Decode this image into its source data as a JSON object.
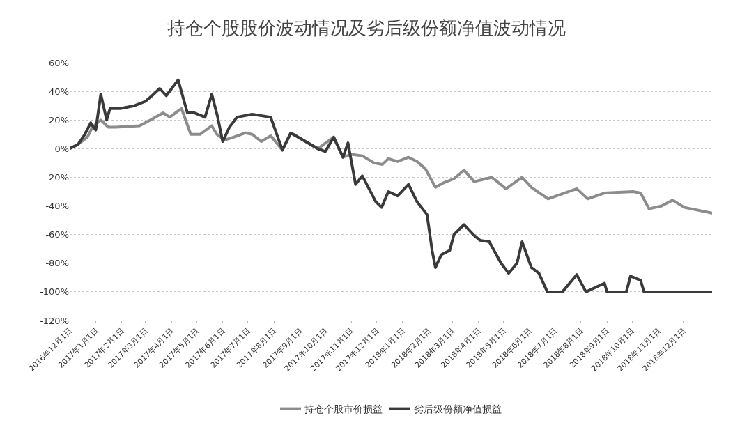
{
  "chart_data": {
    "type": "line",
    "title": "持仓个股股价波动情况及劣后级份额净值波动情况",
    "xlim": [
      "2016-12-01",
      "2019-01-04"
    ],
    "xticks": [
      {
        "value": "2016-12-01",
        "label": "2016年12月1日"
      },
      {
        "value": "2017-01-01",
        "label": "2017年1月1日"
      },
      {
        "value": "2017-02-01",
        "label": "2017年2月1日"
      },
      {
        "value": "2017-03-01",
        "label": "2017年3月1日"
      },
      {
        "value": "2017-04-01",
        "label": "2017年4月1日"
      },
      {
        "value": "2017-05-01",
        "label": "2017年5月1日"
      },
      {
        "value": "2017-06-01",
        "label": "2017年6月1日"
      },
      {
        "value": "2017-07-01",
        "label": "2017年7月1日"
      },
      {
        "value": "2017-08-01",
        "label": "2017年8月1日"
      },
      {
        "value": "2017-09-01",
        "label": "2017年9月1日"
      },
      {
        "value": "2017-10-01",
        "label": "2017年10月1日"
      },
      {
        "value": "2017-11-01",
        "label": "2017年11月1日"
      },
      {
        "value": "2017-12-01",
        "label": "2017年12月1日"
      },
      {
        "value": "2018-01-01",
        "label": "2018年1月1日"
      },
      {
        "value": "2018-02-01",
        "label": "2018年2月1日"
      },
      {
        "value": "2018-03-01",
        "label": "2018年3月1日"
      },
      {
        "value": "2018-04-01",
        "label": "2018年4月1日"
      },
      {
        "value": "2018-05-01",
        "label": "2018年5月1日"
      },
      {
        "value": "2018-06-01",
        "label": "2018年6月1日"
      },
      {
        "value": "2018-07-01",
        "label": "2018年7月1日"
      },
      {
        "value": "2018-08-01",
        "label": "2018年8月1日"
      },
      {
        "value": "2018-09-01",
        "label": "2018年9月1日"
      },
      {
        "value": "2018-10-01",
        "label": "2018年10月1日"
      },
      {
        "value": "2018-11-01",
        "label": "2018年11月1日"
      },
      {
        "value": "2018-12-01",
        "label": "2018年12月1日"
      }
    ],
    "ylim": [
      -120,
      60
    ],
    "yticks": [
      {
        "value": 60,
        "label": "60%"
      },
      {
        "value": 40,
        "label": "40%"
      },
      {
        "value": 20,
        "label": "20%"
      },
      {
        "value": 0,
        "label": "0%"
      },
      {
        "value": -20,
        "label": "-20%"
      },
      {
        "value": -40,
        "label": "-40%"
      },
      {
        "value": -60,
        "label": "-60%"
      },
      {
        "value": -80,
        "label": "-80%"
      },
      {
        "value": -100,
        "label": "-100%"
      },
      {
        "value": -120,
        "label": "-120%"
      }
    ],
    "grid": "y",
    "legend": "bottom",
    "marker": "none",
    "line_style": "solid",
    "series": [
      {
        "name": "持仓个股市价损益",
        "color": "#8c8c8c",
        "x": [
          "2016-12-01",
          "2016-12-11",
          "2016-12-22",
          "2016-12-28",
          "2017-01-07",
          "2017-01-16",
          "2017-01-25",
          "2017-02-22",
          "2017-03-07",
          "2017-03-22",
          "2017-03-30",
          "2017-04-13",
          "2017-04-24",
          "2017-05-05",
          "2017-05-19",
          "2017-05-25",
          "2017-06-03",
          "2017-06-14",
          "2017-06-28",
          "2017-07-06",
          "2017-07-17",
          "2017-07-28",
          "2017-08-11",
          "2017-08-21",
          "2017-09-22",
          "2017-10-11",
          "2017-10-22",
          "2017-11-01",
          "2017-11-14",
          "2017-11-28",
          "2017-12-08",
          "2017-12-15",
          "2017-12-26",
          "2018-01-08",
          "2018-01-18",
          "2018-01-28",
          "2018-02-09",
          "2018-02-18",
          "2018-03-03",
          "2018-03-15",
          "2018-03-27",
          "2018-04-17",
          "2018-05-04",
          "2018-05-23",
          "2018-06-03",
          "2018-06-23",
          "2018-07-27",
          "2018-08-09",
          "2018-08-29",
          "2018-10-02",
          "2018-10-11",
          "2018-10-21",
          "2018-11-05",
          "2018-11-18",
          "2018-12-02",
          "2019-01-04"
        ],
        "values": [
          0,
          3,
          8,
          15,
          20,
          15,
          15,
          16,
          20,
          25,
          22,
          28,
          10,
          10,
          16,
          10,
          6,
          8,
          11,
          10,
          5,
          9,
          -1,
          11,
          0,
          8,
          -6,
          -4,
          -5,
          -10,
          -11,
          -7,
          -9,
          -6,
          -9,
          -14,
          -27,
          -24,
          -21,
          -15,
          -23,
          -20,
          -28,
          -20,
          -27,
          -35,
          -28,
          -35,
          -31,
          -30,
          -31,
          -42,
          -40,
          -36,
          -41,
          -45
        ]
      },
      {
        "name": "劣后级份额净值损益",
        "color": "#3a3a3a",
        "x": [
          "2016-12-01",
          "2016-12-11",
          "2016-12-19",
          "2016-12-26",
          "2017-01-01",
          "2017-01-07",
          "2017-01-14",
          "2017-01-18",
          "2017-01-30",
          "2017-02-16",
          "2017-03-01",
          "2017-03-09",
          "2017-03-18",
          "2017-03-26",
          "2017-04-09",
          "2017-04-20",
          "2017-04-28",
          "2017-05-11",
          "2017-05-19",
          "2017-05-26",
          "2017-06-01",
          "2017-06-09",
          "2017-06-18",
          "2017-07-06",
          "2017-07-28",
          "2017-08-11",
          "2017-08-21",
          "2017-09-22",
          "2017-10-01",
          "2017-10-11",
          "2017-10-22",
          "2017-10-28",
          "2017-11-06",
          "2017-11-14",
          "2017-11-30",
          "2017-12-07",
          "2017-12-15",
          "2017-12-26",
          "2018-01-08",
          "2018-01-18",
          "2018-01-30",
          "2018-02-05",
          "2018-02-09",
          "2018-02-16",
          "2018-02-26",
          "2018-03-03",
          "2018-03-15",
          "2018-03-26",
          "2018-04-03",
          "2018-04-14",
          "2018-04-28",
          "2018-05-07",
          "2018-05-17",
          "2018-05-23",
          "2018-06-03",
          "2018-06-12",
          "2018-06-22",
          "2018-07-10",
          "2018-07-27",
          "2018-08-07",
          "2018-08-29",
          "2018-09-01",
          "2018-09-24",
          "2018-09-29",
          "2018-10-11",
          "2018-10-15",
          "2019-01-04"
        ],
        "values": [
          0,
          3,
          10,
          18,
          13,
          38,
          20,
          28,
          28,
          30,
          33,
          37,
          42,
          37,
          48,
          25,
          25,
          22,
          38,
          22,
          5,
          15,
          22,
          24,
          22,
          -1,
          11,
          0,
          -2,
          8,
          -6,
          4,
          -25,
          -19,
          -37,
          -41,
          -30,
          -33,
          -25,
          -37,
          -46,
          -71,
          -83,
          -74,
          -71,
          -60,
          -53,
          -60,
          -64,
          -65,
          -80,
          -87,
          -80,
          -65,
          -83,
          -87,
          -100,
          -100,
          -88,
          -100,
          -94,
          -100,
          -100,
          -89,
          -92,
          -100,
          -100
        ]
      }
    ]
  }
}
